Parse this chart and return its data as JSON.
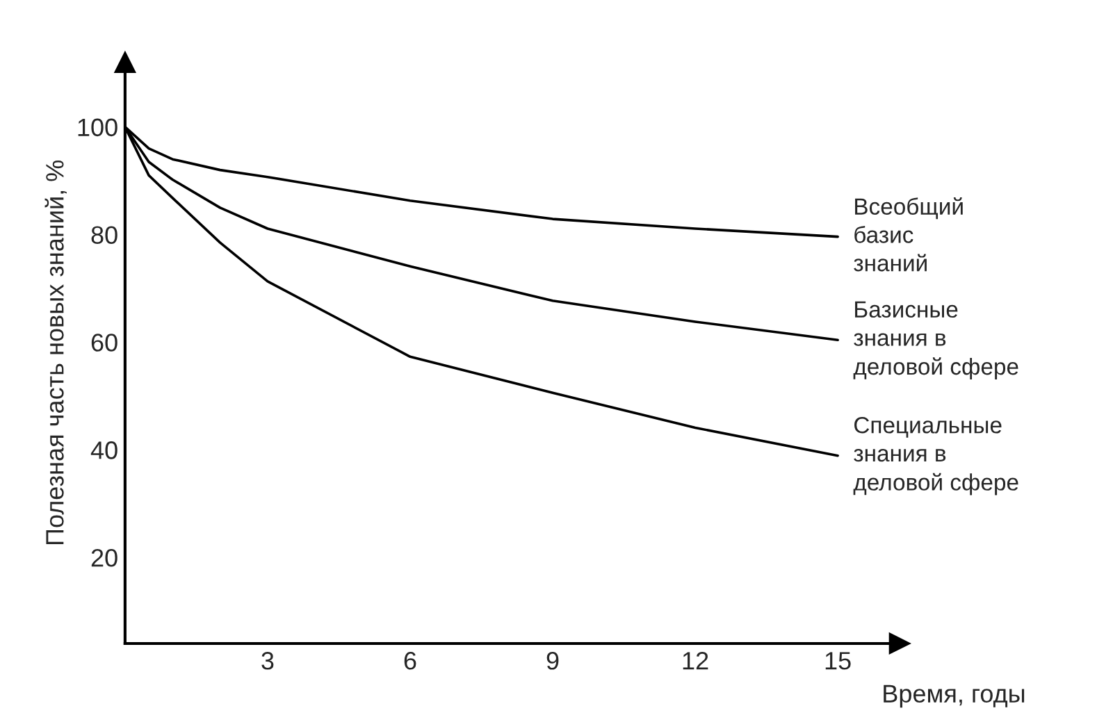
{
  "chart_data": {
    "type": "line",
    "xlabel": "Время, годы",
    "ylabel": "Полезная часть новых знаний, %",
    "x": [
      0,
      0.5,
      1,
      2,
      3,
      6,
      9,
      12,
      15
    ],
    "series": [
      {
        "name": "Всеобщий\nбазис\nзнаний",
        "color": "#000000",
        "values": [
          100,
          96,
          94,
          92,
          90.7,
          86.3,
          82.9,
          81.1,
          79.6
        ]
      },
      {
        "name": "Базисные\nзнания в\nделовой сфере",
        "color": "#000000",
        "values": [
          100,
          93.5,
          90.2,
          85,
          81.1,
          74.1,
          67.7,
          63.8,
          60.4
        ]
      },
      {
        "name": "Специальные\nзнания в\nделовой сфере",
        "color": "#000000",
        "values": [
          100,
          91,
          86.8,
          78.5,
          71.3,
          57.3,
          50.6,
          44.1,
          38.9
        ]
      }
    ],
    "xlim": [
      0,
      16.3
    ],
    "ylim": [
      4,
      112
    ],
    "xticks": [
      3,
      6,
      9,
      12,
      15
    ],
    "yticks": [
      20,
      40,
      60,
      80,
      100
    ],
    "grid": false,
    "legend": false,
    "marker": "none",
    "line_style": "solid"
  }
}
